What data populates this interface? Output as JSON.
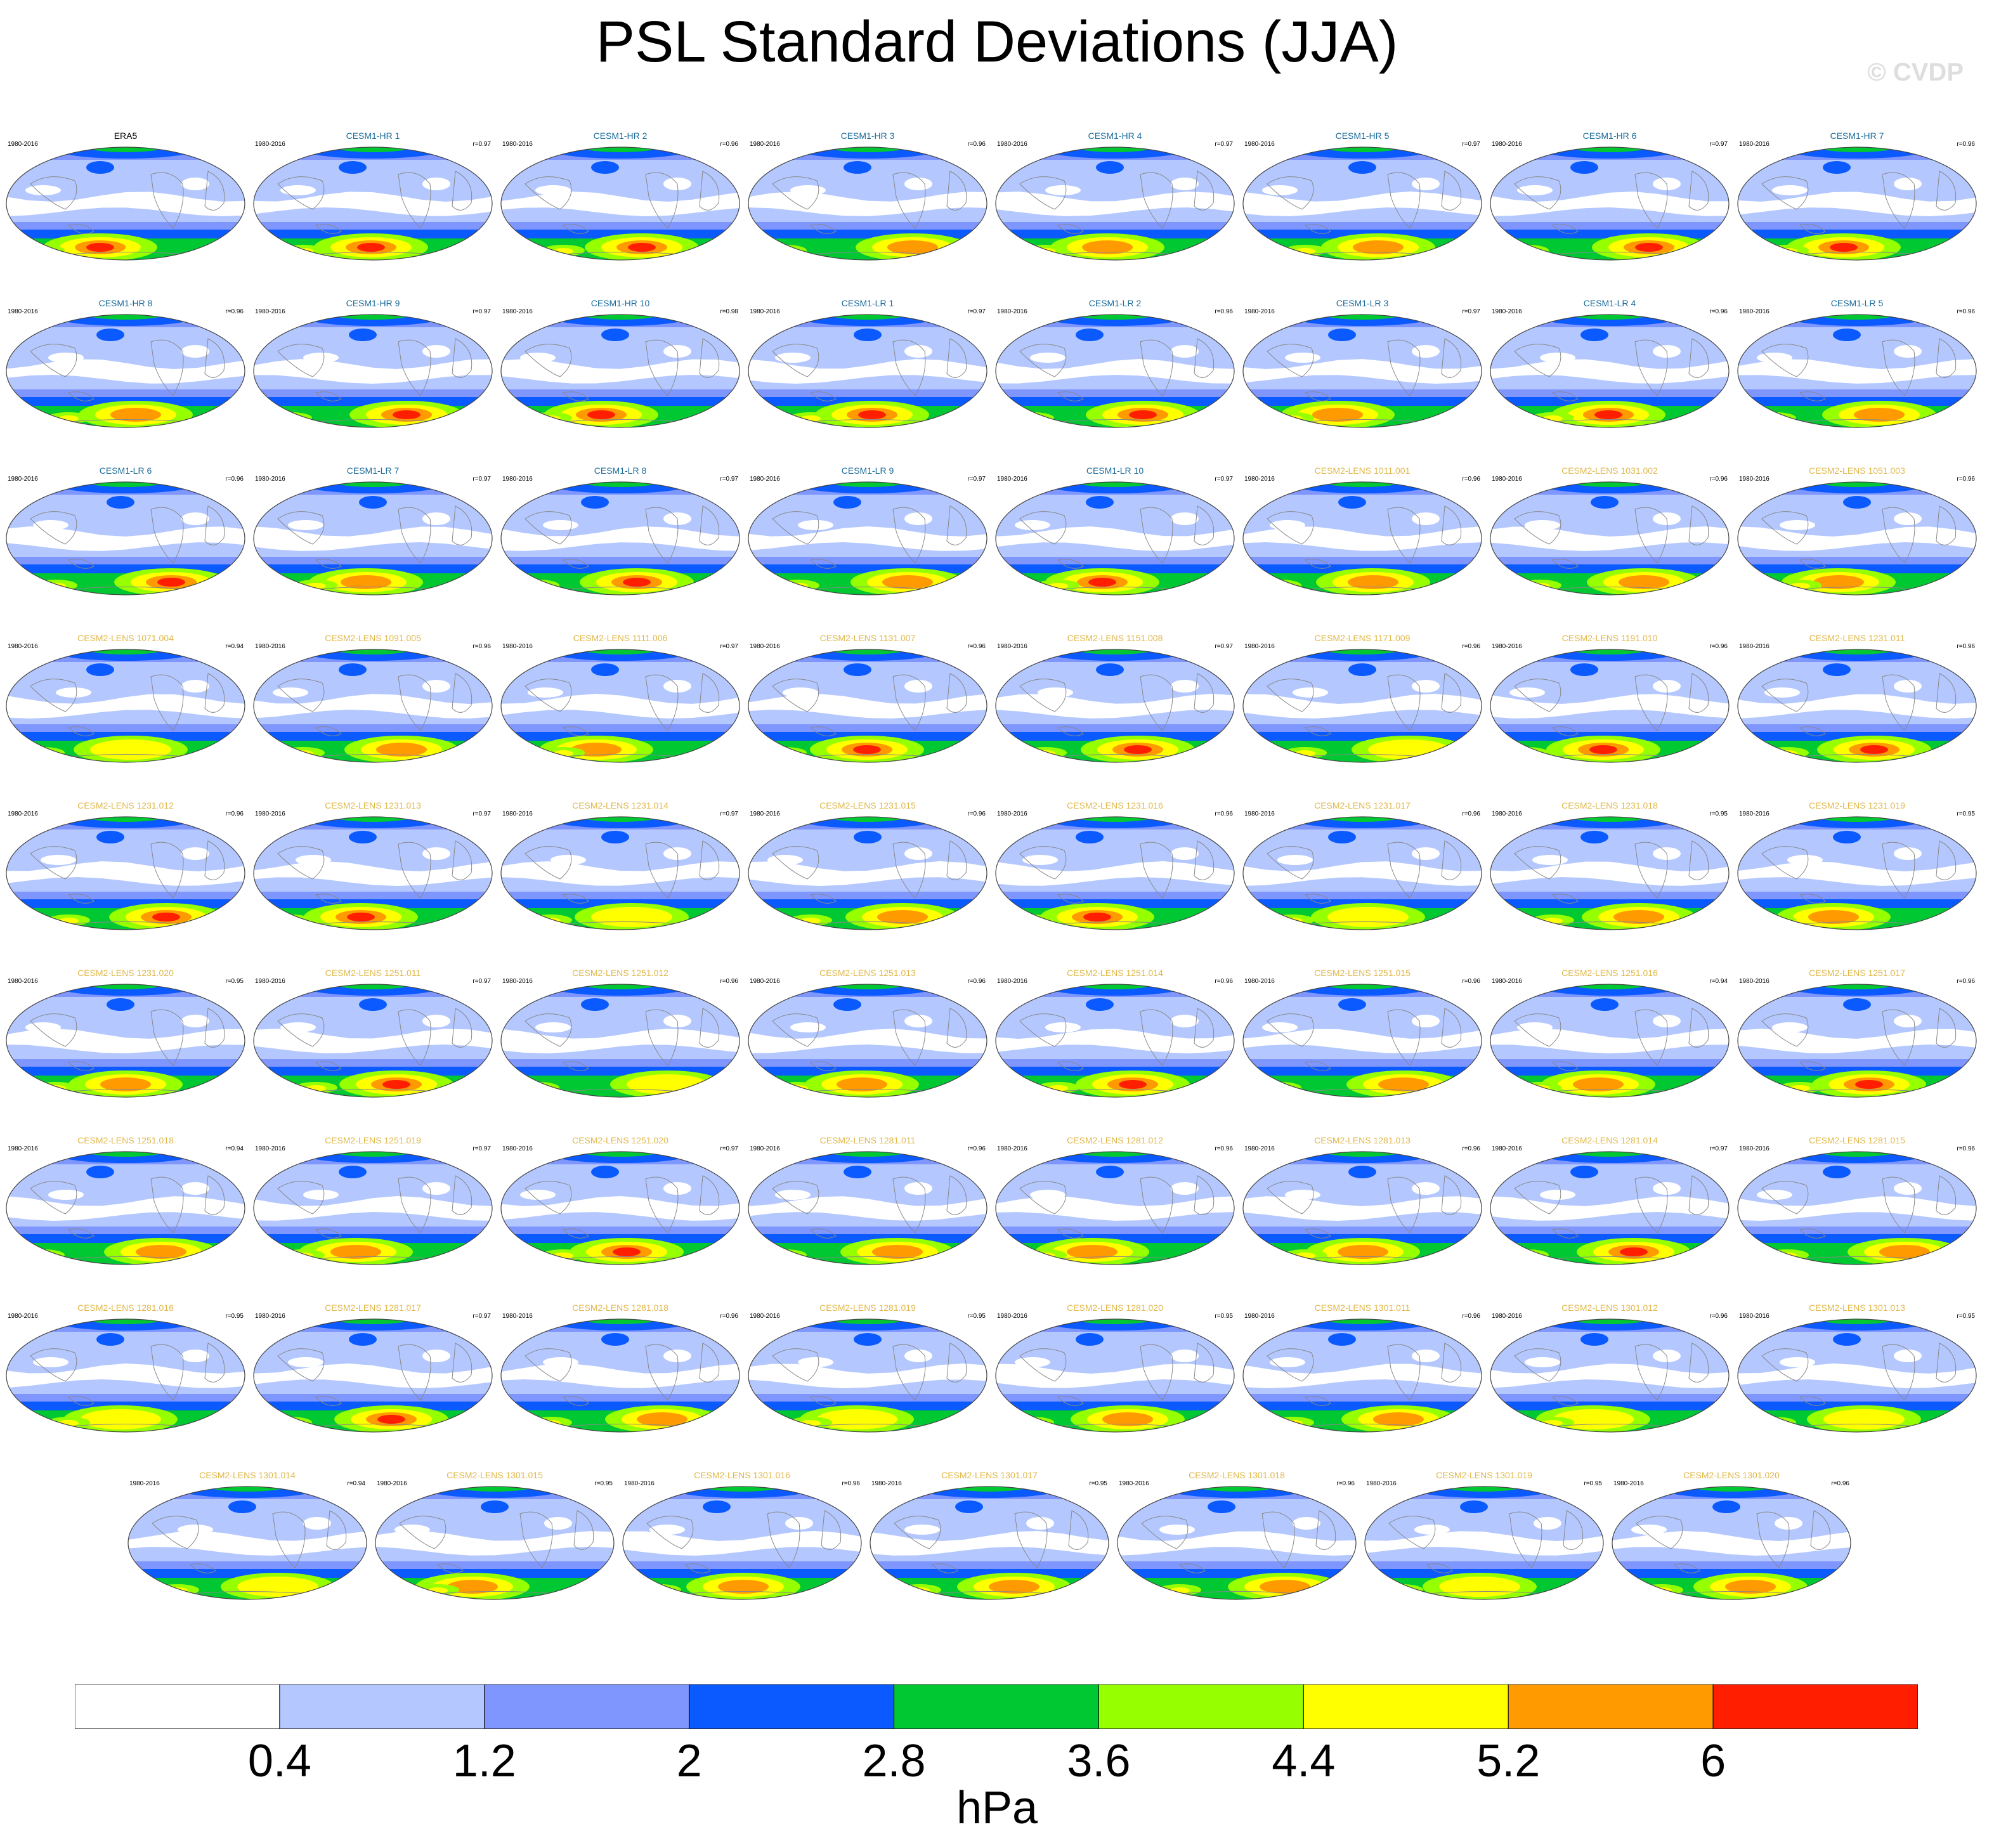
{
  "chart_data": {
    "type": "map-panel-grid",
    "title": "PSL Standard Deviations (JJA)",
    "watermark": "© CVDP",
    "units": "hPa",
    "colorbar": {
      "levels": [
        "0.4",
        "1.2",
        "2",
        "2.8",
        "3.6",
        "4.4",
        "5.2",
        "6"
      ],
      "colors": [
        "#ffffff",
        "#b4c8ff",
        "#7f96ff",
        "#0a5aff",
        "#00c832",
        "#96ff00",
        "#ffff00",
        "#ff9b00",
        "#ff1e00"
      ]
    },
    "label_colors": {
      "obs": "#000000",
      "CESM1": "#1a6b9a",
      "CESM2": "#e0b84a"
    },
    "panels": [
      {
        "title": "ERA5",
        "years": "1980-2016",
        "r": "",
        "group": "obs",
        "maxlevel": 8
      },
      {
        "title": "CESM1-HR 1",
        "years": "1980-2016",
        "r": "r=0.97",
        "group": "CESM1",
        "maxlevel": 8
      },
      {
        "title": "CESM1-HR 2",
        "years": "1980-2016",
        "r": "r=0.96",
        "group": "CESM1",
        "maxlevel": 8
      },
      {
        "title": "CESM1-HR 3",
        "years": "1980-2016",
        "r": "r=0.96",
        "group": "CESM1",
        "maxlevel": 7
      },
      {
        "title": "CESM1-HR 4",
        "years": "1980-2016",
        "r": "r=0.97",
        "group": "CESM1",
        "maxlevel": 7
      },
      {
        "title": "CESM1-HR 5",
        "years": "1980-2016",
        "r": "r=0.97",
        "group": "CESM1",
        "maxlevel": 7
      },
      {
        "title": "CESM1-HR 6",
        "years": "1980-2016",
        "r": "r=0.97",
        "group": "CESM1",
        "maxlevel": 8
      },
      {
        "title": "CESM1-HR 7",
        "years": "1980-2016",
        "r": "r=0.96",
        "group": "CESM1",
        "maxlevel": 8
      },
      {
        "title": "CESM1-HR 8",
        "years": "1980-2016",
        "r": "r=0.96",
        "group": "CESM1",
        "maxlevel": 7
      },
      {
        "title": "CESM1-HR 9",
        "years": "1980-2016",
        "r": "r=0.97",
        "group": "CESM1",
        "maxlevel": 8
      },
      {
        "title": "CESM1-HR 10",
        "years": "1980-2016",
        "r": "r=0.98",
        "group": "CESM1",
        "maxlevel": 8
      },
      {
        "title": "CESM1-LR 1",
        "years": "1980-2016",
        "r": "r=0.97",
        "group": "CESM1",
        "maxlevel": 8
      },
      {
        "title": "CESM1-LR 2",
        "years": "1980-2016",
        "r": "r=0.96",
        "group": "CESM1",
        "maxlevel": 8
      },
      {
        "title": "CESM1-LR 3",
        "years": "1980-2016",
        "r": "r=0.97",
        "group": "CESM1",
        "maxlevel": 7
      },
      {
        "title": "CESM1-LR 4",
        "years": "1980-2016",
        "r": "r=0.96",
        "group": "CESM1",
        "maxlevel": 8
      },
      {
        "title": "CESM1-LR 5",
        "years": "1980-2016",
        "r": "r=0.96",
        "group": "CESM1",
        "maxlevel": 7
      },
      {
        "title": "CESM1-LR 6",
        "years": "1980-2016",
        "r": "r=0.96",
        "group": "CESM1",
        "maxlevel": 8
      },
      {
        "title": "CESM1-LR 7",
        "years": "1980-2016",
        "r": "r=0.97",
        "group": "CESM1",
        "maxlevel": 7
      },
      {
        "title": "CESM1-LR 8",
        "years": "1980-2016",
        "r": "r=0.97",
        "group": "CESM1",
        "maxlevel": 8
      },
      {
        "title": "CESM1-LR 9",
        "years": "1980-2016",
        "r": "r=0.97",
        "group": "CESM1",
        "maxlevel": 7
      },
      {
        "title": "CESM1-LR 10",
        "years": "1980-2016",
        "r": "r=0.97",
        "group": "CESM1",
        "maxlevel": 8
      },
      {
        "title": "CESM2-LENS 1011.001",
        "years": "1980-2016",
        "r": "r=0.96",
        "group": "CESM2",
        "maxlevel": 7
      },
      {
        "title": "CESM2-LENS 1031.002",
        "years": "1980-2016",
        "r": "r=0.96",
        "group": "CESM2",
        "maxlevel": 7
      },
      {
        "title": "CESM2-LENS 1051.003",
        "years": "1980-2016",
        "r": "r=0.96",
        "group": "CESM2",
        "maxlevel": 7
      },
      {
        "title": "CESM2-LENS 1071.004",
        "years": "1980-2016",
        "r": "r=0.94",
        "group": "CESM2",
        "maxlevel": 6
      },
      {
        "title": "CESM2-LENS 1091.005",
        "years": "1980-2016",
        "r": "r=0.96",
        "group": "CESM2",
        "maxlevel": 7
      },
      {
        "title": "CESM2-LENS 1111.006",
        "years": "1980-2016",
        "r": "r=0.97",
        "group": "CESM2",
        "maxlevel": 7
      },
      {
        "title": "CESM2-LENS 1131.007",
        "years": "1980-2016",
        "r": "r=0.96",
        "group": "CESM2",
        "maxlevel": 8
      },
      {
        "title": "CESM2-LENS 1151.008",
        "years": "1980-2016",
        "r": "r=0.97",
        "group": "CESM2",
        "maxlevel": 8
      },
      {
        "title": "CESM2-LENS 1171.009",
        "years": "1980-2016",
        "r": "r=0.96",
        "group": "CESM2",
        "maxlevel": 6
      },
      {
        "title": "CESM2-LENS 1191.010",
        "years": "1980-2016",
        "r": "r=0.96",
        "group": "CESM2",
        "maxlevel": 8
      },
      {
        "title": "CESM2-LENS 1231.011",
        "years": "1980-2016",
        "r": "r=0.96",
        "group": "CESM2",
        "maxlevel": 8
      },
      {
        "title": "CESM2-LENS 1231.012",
        "years": "1980-2016",
        "r": "r=0.96",
        "group": "CESM2",
        "maxlevel": 8
      },
      {
        "title": "CESM2-LENS 1231.013",
        "years": "1980-2016",
        "r": "r=0.97",
        "group": "CESM2",
        "maxlevel": 8
      },
      {
        "title": "CESM2-LENS 1231.014",
        "years": "1980-2016",
        "r": "r=0.97",
        "group": "CESM2",
        "maxlevel": 6
      },
      {
        "title": "CESM2-LENS 1231.015",
        "years": "1980-2016",
        "r": "r=0.96",
        "group": "CESM2",
        "maxlevel": 7
      },
      {
        "title": "CESM2-LENS 1231.016",
        "years": "1980-2016",
        "r": "r=0.96",
        "group": "CESM2",
        "maxlevel": 8
      },
      {
        "title": "CESM2-LENS 1231.017",
        "years": "1980-2016",
        "r": "r=0.96",
        "group": "CESM2",
        "maxlevel": 6
      },
      {
        "title": "CESM2-LENS 1231.018",
        "years": "1980-2016",
        "r": "r=0.95",
        "group": "CESM2",
        "maxlevel": 7
      },
      {
        "title": "CESM2-LENS 1231.019",
        "years": "1980-2016",
        "r": "r=0.95",
        "group": "CESM2",
        "maxlevel": 7
      },
      {
        "title": "CESM2-LENS 1231.020",
        "years": "1980-2016",
        "r": "r=0.95",
        "group": "CESM2",
        "maxlevel": 7
      },
      {
        "title": "CESM2-LENS 1251.011",
        "years": "1980-2016",
        "r": "r=0.97",
        "group": "CESM2",
        "maxlevel": 8
      },
      {
        "title": "CESM2-LENS 1251.012",
        "years": "1980-2016",
        "r": "r=0.96",
        "group": "CESM2",
        "maxlevel": 6
      },
      {
        "title": "CESM2-LENS 1251.013",
        "years": "1980-2016",
        "r": "r=0.96",
        "group": "CESM2",
        "maxlevel": 7
      },
      {
        "title": "CESM2-LENS 1251.014",
        "years": "1980-2016",
        "r": "r=0.96",
        "group": "CESM2",
        "maxlevel": 8
      },
      {
        "title": "CESM2-LENS 1251.015",
        "years": "1980-2016",
        "r": "r=0.96",
        "group": "CESM2",
        "maxlevel": 7
      },
      {
        "title": "CESM2-LENS 1251.016",
        "years": "1980-2016",
        "r": "r=0.94",
        "group": "CESM2",
        "maxlevel": 7
      },
      {
        "title": "CESM2-LENS 1251.017",
        "years": "1980-2016",
        "r": "r=0.96",
        "group": "CESM2",
        "maxlevel": 8
      },
      {
        "title": "CESM2-LENS 1251.018",
        "years": "1980-2016",
        "r": "r=0.94",
        "group": "CESM2",
        "maxlevel": 7
      },
      {
        "title": "CESM2-LENS 1251.019",
        "years": "1980-2016",
        "r": "r=0.97",
        "group": "CESM2",
        "maxlevel": 7
      },
      {
        "title": "CESM2-LENS 1251.020",
        "years": "1980-2016",
        "r": "r=0.97",
        "group": "CESM2",
        "maxlevel": 8
      },
      {
        "title": "CESM2-LENS 1281.011",
        "years": "1980-2016",
        "r": "r=0.96",
        "group": "CESM2",
        "maxlevel": 7
      },
      {
        "title": "CESM2-LENS 1281.012",
        "years": "1980-2016",
        "r": "r=0.96",
        "group": "CESM2",
        "maxlevel": 7
      },
      {
        "title": "CESM2-LENS 1281.013",
        "years": "1980-2016",
        "r": "r=0.96",
        "group": "CESM2",
        "maxlevel": 7
      },
      {
        "title": "CESM2-LENS 1281.014",
        "years": "1980-2016",
        "r": "r=0.97",
        "group": "CESM2",
        "maxlevel": 8
      },
      {
        "title": "CESM2-LENS 1281.015",
        "years": "1980-2016",
        "r": "r=0.96",
        "group": "CESM2",
        "maxlevel": 7
      },
      {
        "title": "CESM2-LENS 1281.016",
        "years": "1980-2016",
        "r": "r=0.95",
        "group": "CESM2",
        "maxlevel": 6
      },
      {
        "title": "CESM2-LENS 1281.017",
        "years": "1980-2016",
        "r": "r=0.97",
        "group": "CESM2",
        "maxlevel": 8
      },
      {
        "title": "CESM2-LENS 1281.018",
        "years": "1980-2016",
        "r": "r=0.96",
        "group": "CESM2",
        "maxlevel": 7
      },
      {
        "title": "CESM2-LENS 1281.019",
        "years": "1980-2016",
        "r": "r=0.95",
        "group": "CESM2",
        "maxlevel": 6
      },
      {
        "title": "CESM2-LENS 1281.020",
        "years": "1980-2016",
        "r": "r=0.95",
        "group": "CESM2",
        "maxlevel": 7
      },
      {
        "title": "CESM2-LENS 1301.011",
        "years": "1980-2016",
        "r": "r=0.96",
        "group": "CESM2",
        "maxlevel": 7
      },
      {
        "title": "CESM2-LENS 1301.012",
        "years": "1980-2016",
        "r": "r=0.96",
        "group": "CESM2",
        "maxlevel": 6
      },
      {
        "title": "CESM2-LENS 1301.013",
        "years": "1980-2016",
        "r": "r=0.95",
        "group": "CESM2",
        "maxlevel": 6
      },
      {
        "title": "CESM2-LENS 1301.014",
        "years": "1980-2016",
        "r": "r=0.94",
        "group": "CESM2",
        "maxlevel": 6
      },
      {
        "title": "CESM2-LENS 1301.015",
        "years": "1980-2016",
        "r": "r=0.95",
        "group": "CESM2",
        "maxlevel": 7
      },
      {
        "title": "CESM2-LENS 1301.016",
        "years": "1980-2016",
        "r": "r=0.96",
        "group": "CESM2",
        "maxlevel": 7
      },
      {
        "title": "CESM2-LENS 1301.017",
        "years": "1980-2016",
        "r": "r=0.95",
        "group": "CESM2",
        "maxlevel": 7
      },
      {
        "title": "CESM2-LENS 1301.018",
        "years": "1980-2016",
        "r": "r=0.96",
        "group": "CESM2",
        "maxlevel": 7
      },
      {
        "title": "CESM2-LENS 1301.019",
        "years": "1980-2016",
        "r": "r=0.95",
        "group": "CESM2",
        "maxlevel": 6
      },
      {
        "title": "CESM2-LENS 1301.020",
        "years": "1980-2016",
        "r": "r=0.96",
        "group": "CESM2",
        "maxlevel": 7
      }
    ]
  }
}
